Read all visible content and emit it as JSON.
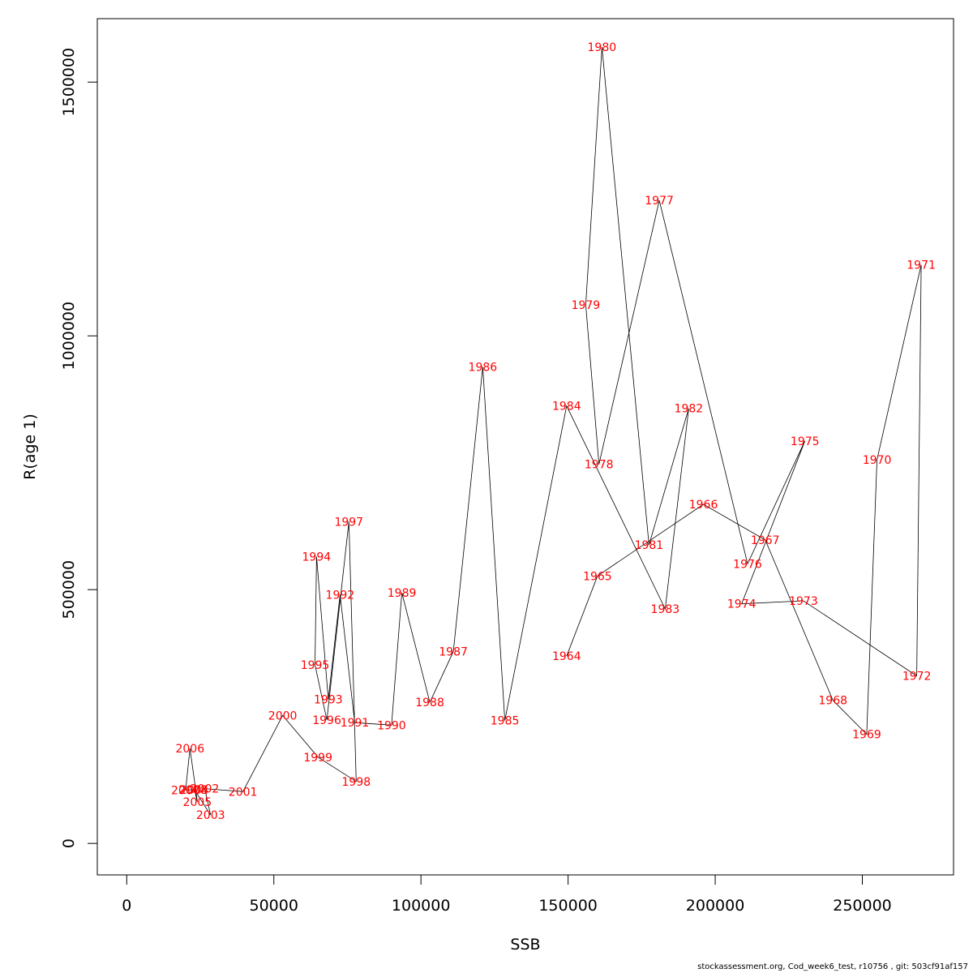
{
  "chart_data": {
    "type": "line",
    "xlabel": "SSB",
    "ylabel": "R(age 1)",
    "xlim": [
      -10000,
      281000
    ],
    "ylim": [
      -62000,
      1625000
    ],
    "x_ticks": [
      0,
      50000,
      100000,
      150000,
      200000,
      250000
    ],
    "y_ticks": [
      0,
      500000,
      1000000,
      1500000
    ],
    "points": [
      {
        "year": "1964",
        "x": 149500,
        "y": 369000
      },
      {
        "year": "1965",
        "x": 160000,
        "y": 527000
      },
      {
        "year": "1966",
        "x": 196000,
        "y": 668000
      },
      {
        "year": "1967",
        "x": 217000,
        "y": 598000
      },
      {
        "year": "1968",
        "x": 240000,
        "y": 282000
      },
      {
        "year": "1969",
        "x": 251500,
        "y": 215000
      },
      {
        "year": "1970",
        "x": 255000,
        "y": 756000
      },
      {
        "year": "1971",
        "x": 270000,
        "y": 1140000
      },
      {
        "year": "1972",
        "x": 268500,
        "y": 330000
      },
      {
        "year": "1973",
        "x": 230000,
        "y": 478000
      },
      {
        "year": "1974",
        "x": 209000,
        "y": 472000
      },
      {
        "year": "1975",
        "x": 230500,
        "y": 793000
      },
      {
        "year": "1976",
        "x": 211000,
        "y": 551000
      },
      {
        "year": "1977",
        "x": 181000,
        "y": 1267000
      },
      {
        "year": "1978",
        "x": 160500,
        "y": 747000
      },
      {
        "year": "1979",
        "x": 156000,
        "y": 1061000
      },
      {
        "year": "1980",
        "x": 161500,
        "y": 1569000
      },
      {
        "year": "1981",
        "x": 177500,
        "y": 588000
      },
      {
        "year": "1982",
        "x": 191000,
        "y": 857000
      },
      {
        "year": "1983",
        "x": 183000,
        "y": 462000
      },
      {
        "year": "1984",
        "x": 149500,
        "y": 862000
      },
      {
        "year": "1985",
        "x": 128500,
        "y": 242000
      },
      {
        "year": "1986",
        "x": 121000,
        "y": 939000
      },
      {
        "year": "1987",
        "x": 111000,
        "y": 378000
      },
      {
        "year": "1988",
        "x": 103000,
        "y": 278000
      },
      {
        "year": "1989",
        "x": 93500,
        "y": 494000
      },
      {
        "year": "1990",
        "x": 90000,
        "y": 233000
      },
      {
        "year": "1991",
        "x": 77500,
        "y": 238000
      },
      {
        "year": "1992",
        "x": 72500,
        "y": 490000
      },
      {
        "year": "1993",
        "x": 68500,
        "y": 284000
      },
      {
        "year": "1994",
        "x": 64500,
        "y": 565000
      },
      {
        "year": "1995",
        "x": 64000,
        "y": 352000
      },
      {
        "year": "1996",
        "x": 68000,
        "y": 243000
      },
      {
        "year": "1997",
        "x": 75500,
        "y": 634000
      },
      {
        "year": "1998",
        "x": 78000,
        "y": 122000
      },
      {
        "year": "1999",
        "x": 65000,
        "y": 170000
      },
      {
        "year": "2000",
        "x": 53000,
        "y": 252000
      },
      {
        "year": "2001",
        "x": 39500,
        "y": 102000
      },
      {
        "year": "2002",
        "x": 26500,
        "y": 108000
      },
      {
        "year": "2003",
        "x": 28500,
        "y": 56000
      },
      {
        "year": "2004",
        "x": 23000,
        "y": 106000
      },
      {
        "year": "2005",
        "x": 24000,
        "y": 82000
      },
      {
        "year": "2006",
        "x": 21500,
        "y": 187000
      },
      {
        "year": "2007",
        "x": 20000,
        "y": 105000
      },
      {
        "year": "2008",
        "x": 22500,
        "y": 106000
      }
    ]
  },
  "footer": "stockassessment.org, Cod_week6_test, r10756 , git: 503cf91af157"
}
